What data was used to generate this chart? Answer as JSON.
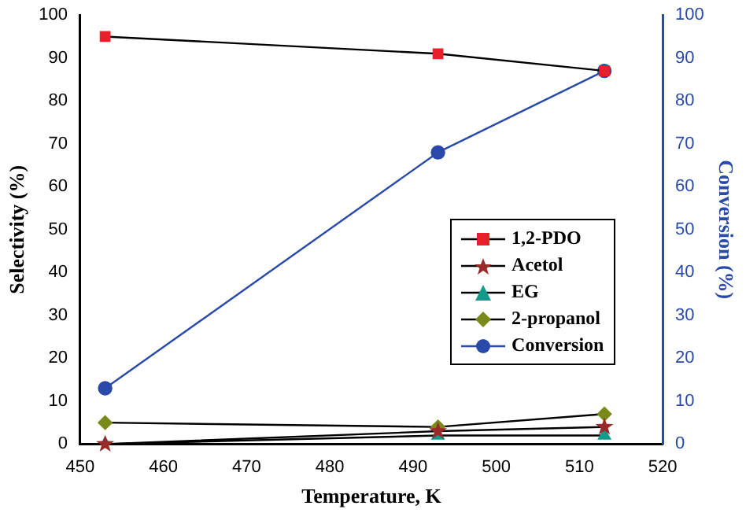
{
  "chart_data": {
    "type": "line",
    "xlabel": "Temperature, K",
    "ylabel": "Selectivity (%)",
    "y2label": "Conversion (%)",
    "x": [
      453,
      493,
      513
    ],
    "series": [
      {
        "name": "1,2-PDO",
        "color": "#e8202a",
        "marker": "square",
        "values": [
          95,
          91,
          87
        ]
      },
      {
        "name": "Acetol",
        "color": "#9a2a2a",
        "marker": "star",
        "values": [
          0,
          3,
          4
        ]
      },
      {
        "name": "EG",
        "color": "#129a8a",
        "marker": "triangle",
        "values": [
          0,
          2,
          2
        ]
      },
      {
        "name": "2-propanol",
        "color": "#7a8a1a",
        "marker": "diamond",
        "values": [
          5,
          4,
          7
        ]
      },
      {
        "name": "Conversion",
        "color": "#2a4aaa",
        "marker": "circle",
        "axis": "y2",
        "values": [
          13,
          68,
          87
        ]
      }
    ],
    "xlim": [
      450,
      520
    ],
    "xticks": [
      450,
      460,
      470,
      480,
      490,
      500,
      510,
      520
    ],
    "ylim": [
      0,
      100
    ],
    "yticks": [
      0,
      10,
      20,
      30,
      40,
      50,
      60,
      70,
      80,
      90,
      100
    ],
    "y2lim": [
      0,
      100
    ],
    "y2ticks": [
      0,
      10,
      20,
      30,
      40,
      50,
      60,
      70,
      80,
      90,
      100
    ],
    "legend": "right",
    "grid": false
  }
}
